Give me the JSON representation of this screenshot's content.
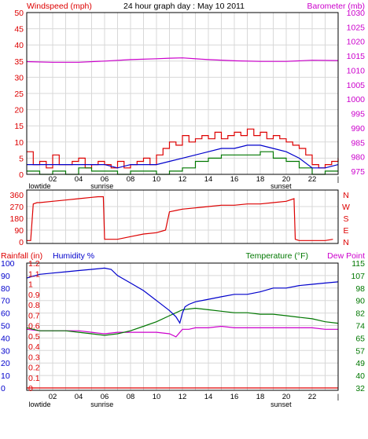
{
  "colors": {
    "wind": "#dd0000",
    "wind_avg": "#0000cc",
    "wind_min": "#007700",
    "barometer": "#cc00cc",
    "direction": "#dd0000",
    "rainfall": "#dd0000",
    "humidity": "#0000cc",
    "temperature": "#007700",
    "dewpoint": "#cc00cc",
    "grid": "#d8d8d8",
    "frame": "#000000"
  },
  "chart_data": [
    {
      "type": "line",
      "title": "24 hour graph day : May 10 2011",
      "left_axis_label": "Windspeed (mph)",
      "right_axis_label": "Barometer (mb)",
      "ylim_left": [
        0,
        50
      ],
      "ylim_right": [
        975,
        1030
      ],
      "yticks_left": [
        "0",
        "5",
        "10",
        "15",
        "20",
        "25",
        "30",
        "35",
        "40",
        "45",
        "50"
      ],
      "yticks_right": [
        "975",
        "980",
        "985",
        "990",
        "995",
        "1000",
        "1005",
        "1010",
        "1015",
        "1020",
        "1025",
        "1030"
      ],
      "xlim": [
        0,
        24
      ],
      "xticks": [
        "02",
        "04",
        "06",
        "08",
        "10",
        "12",
        "14",
        "16",
        "18",
        "20",
        "22",
        "|"
      ],
      "x_markers": [
        {
          "label": "lowtide",
          "hour": 1
        },
        {
          "label": "sunrise",
          "hour": 5.8
        },
        {
          "label": "sunset",
          "hour": 19.6
        }
      ],
      "grid": true,
      "series": [
        {
          "name": "Windspeed",
          "axis": "left",
          "x": [
            0,
            0.5,
            1,
            1.5,
            2,
            2.5,
            3,
            3.5,
            4,
            4.5,
            5,
            5.5,
            6,
            6.5,
            7,
            7.5,
            8,
            8.5,
            9,
            9.5,
            10,
            10.5,
            11,
            11.5,
            12,
            12.5,
            13,
            13.5,
            14,
            14.5,
            15,
            15.5,
            16,
            16.5,
            17,
            17.5,
            18,
            18.5,
            19,
            19.5,
            20,
            20.5,
            21,
            21.5,
            22,
            22.5,
            23,
            23.5,
            24
          ],
          "values": [
            7,
            3,
            4,
            2,
            6,
            3,
            3,
            4,
            5,
            2,
            3,
            4,
            3,
            2,
            4,
            2,
            3,
            4,
            5,
            3,
            6,
            8,
            10,
            9,
            12,
            10,
            11,
            12,
            11,
            13,
            11,
            12,
            13,
            12,
            14,
            12,
            13,
            11,
            12,
            11,
            10,
            9,
            8,
            6,
            3,
            2,
            3,
            4,
            5
          ]
        },
        {
          "name": "Wind avg",
          "axis": "left",
          "x": [
            0,
            1,
            2,
            3,
            4,
            5,
            6,
            7,
            8,
            9,
            10,
            11,
            12,
            13,
            14,
            15,
            16,
            17,
            18,
            19,
            20,
            21,
            22,
            23,
            24
          ],
          "values": [
            3,
            3,
            3,
            3,
            3,
            3,
            3,
            2,
            3,
            3,
            3,
            4,
            5,
            6,
            7,
            8,
            8,
            9,
            9,
            8,
            7,
            5,
            2,
            2,
            3
          ]
        },
        {
          "name": "Wind min",
          "axis": "left",
          "x": [
            0,
            1,
            2,
            3,
            4,
            5,
            6,
            7,
            8,
            9,
            10,
            11,
            12,
            13,
            14,
            15,
            16,
            17,
            18,
            19,
            20,
            21,
            22,
            23,
            24
          ],
          "values": [
            1,
            0,
            1,
            0,
            2,
            1,
            1,
            0,
            1,
            1,
            0,
            1,
            2,
            4,
            5,
            6,
            6,
            6,
            7,
            5,
            4,
            2,
            0,
            1,
            1
          ]
        },
        {
          "name": "Barometer",
          "axis": "right",
          "x": [
            0,
            2,
            4,
            6,
            8,
            10,
            11,
            12,
            14,
            16,
            18,
            20,
            22,
            24
          ],
          "values": [
            1013.3,
            1013.1,
            1013.1,
            1013.5,
            1014.0,
            1014.3,
            1014.5,
            1014.6,
            1014.0,
            1013.6,
            1013.4,
            1013.4,
            1013.8,
            1013.7
          ]
        }
      ]
    },
    {
      "type": "line",
      "title": "",
      "ylim": [
        0,
        360
      ],
      "yticks_left": [
        "0",
        "90",
        "180",
        "270",
        "360"
      ],
      "yticks_right": [
        "N",
        "E",
        "S",
        "W",
        "N"
      ],
      "xlim": [
        0,
        24
      ],
      "grid": true,
      "series": [
        {
          "name": "Wind direction",
          "x": [
            0,
            0.3,
            0.5,
            0.8,
            1,
            2,
            3,
            4,
            5,
            5.5,
            5.9,
            6,
            7,
            8,
            9,
            10,
            10.7,
            11,
            11.5,
            12,
            13,
            14,
            15,
            16,
            17,
            18,
            19,
            20,
            20.6,
            20.7,
            21,
            22,
            23,
            23.6
          ],
          "values": [
            10,
            10,
            290,
            300,
            300,
            310,
            320,
            330,
            340,
            345,
            345,
            20,
            20,
            40,
            60,
            70,
            90,
            230,
            240,
            250,
            260,
            270,
            280,
            280,
            290,
            290,
            300,
            310,
            330,
            20,
            10,
            10,
            10,
            20
          ]
        }
      ]
    },
    {
      "type": "line",
      "title": "",
      "left_axis_label_1": "Rainfall (in)",
      "left_axis_label_2": "Humidity %",
      "right_axis_label_1": "Temperature (°F)",
      "right_axis_label_2": "Dew Point",
      "ylim_humidity": [
        0,
        100
      ],
      "ylim_rain": [
        0,
        1.2
      ],
      "ylim_temperature": [
        32,
        115
      ],
      "yticks_humidity": [
        "0",
        "10",
        "20",
        "30",
        "40",
        "50",
        "60",
        "70",
        "80",
        "90",
        "100"
      ],
      "yticks_rain": [
        "0",
        "0.1",
        "0.2",
        "0.3",
        "0.4",
        "0.5",
        "0.6",
        "0.7",
        "0.8",
        "0.9",
        "1",
        "1.1",
        "1.2"
      ],
      "yticks_temperature": [
        "32",
        "40",
        "49",
        "57",
        "65",
        "74",
        "82",
        "90",
        "98",
        "107",
        "115"
      ],
      "xlim": [
        0,
        24
      ],
      "xticks": [
        "02",
        "04",
        "06",
        "08",
        "10",
        "12",
        "14",
        "16",
        "18",
        "20",
        "22",
        "|"
      ],
      "x_markers": [
        {
          "label": "lowtide",
          "hour": 1
        },
        {
          "label": "sunrise",
          "hour": 5.8
        },
        {
          "label": "sunset",
          "hour": 19.6
        }
      ],
      "grid": true,
      "series": [
        {
          "name": "Humidity",
          "axis": "humidity",
          "x": [
            0,
            1,
            2,
            3,
            4,
            5,
            6,
            6.5,
            7,
            8,
            9,
            10,
            11,
            11.5,
            11.8,
            12,
            12.2,
            12.5,
            13,
            14,
            15,
            16,
            17,
            18,
            19,
            20,
            21,
            22,
            23,
            24
          ],
          "values": [
            88,
            91,
            92,
            93,
            94,
            95,
            96,
            95,
            90,
            84,
            78,
            70,
            62,
            57,
            52,
            60,
            65,
            67,
            69,
            71,
            73,
            75,
            75,
            77,
            80,
            80,
            82,
            83,
            84,
            85
          ]
        },
        {
          "name": "Temperature",
          "axis": "temperature",
          "x": [
            0,
            1,
            2,
            3,
            4,
            5,
            6,
            7,
            8,
            9,
            10,
            11,
            12,
            13,
            14,
            15,
            16,
            17,
            18,
            19,
            20,
            21,
            22,
            23,
            24
          ],
          "values": [
            72,
            70,
            70,
            70,
            69,
            68,
            67,
            68,
            70,
            73,
            76,
            80,
            84,
            85,
            84,
            83,
            82,
            82,
            81,
            81,
            80,
            79,
            78,
            76,
            75
          ]
        },
        {
          "name": "Dew Point",
          "axis": "temperature",
          "x": [
            0,
            1,
            2,
            3,
            4,
            5,
            6,
            7,
            8,
            9,
            10,
            11,
            11.5,
            12,
            12.5,
            13,
            14,
            15,
            16,
            17,
            18,
            19,
            20,
            21,
            22,
            23,
            24
          ],
          "values": [
            71,
            70,
            70,
            70,
            70,
            69,
            68,
            69,
            69,
            69,
            69,
            68,
            66,
            71,
            71,
            72,
            72,
            73,
            72,
            72,
            72,
            72,
            72,
            72,
            72,
            71,
            71
          ]
        },
        {
          "name": "Rainfall",
          "axis": "rain",
          "x": [
            0,
            24
          ],
          "values": [
            0,
            0
          ]
        }
      ]
    }
  ]
}
